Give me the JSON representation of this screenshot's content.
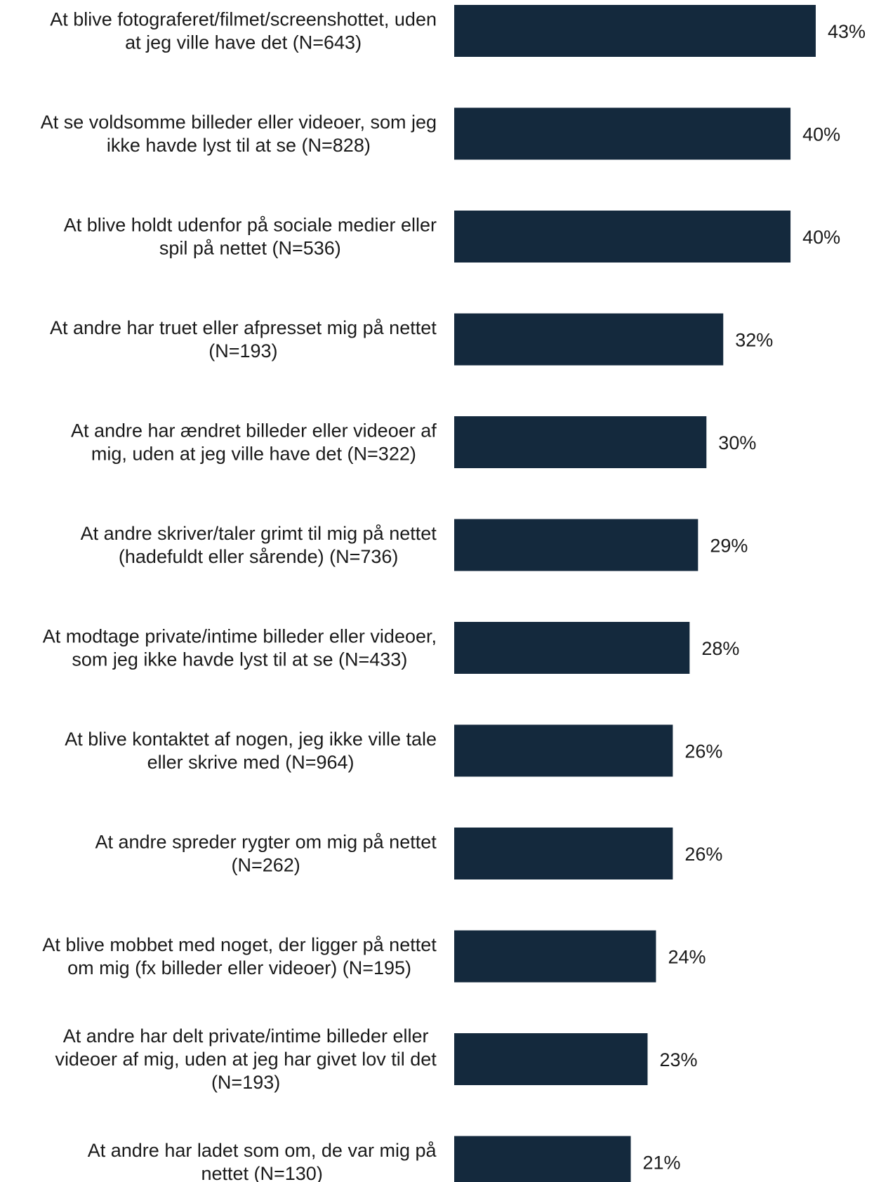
{
  "chart_data": {
    "type": "bar",
    "orientation": "horizontal",
    "bar_color": "#14293d",
    "value_suffix": "%",
    "xlim": [
      0,
      43
    ],
    "grid": false,
    "categories": [
      [
        "At blive fotograferet/filmet/screenshottet, uden",
        "at jeg ville have det (N=643)"
      ],
      [
        "At se voldsomme billeder eller videoer, som jeg",
        "ikke havde lyst til at se (N=828)"
      ],
      [
        "At blive holdt udenfor på sociale medier eller",
        "spil på nettet (N=536)"
      ],
      [
        "At andre har truet eller afpresset mig på nettet",
        "(N=193)"
      ],
      [
        "At andre har ændret billeder eller videoer af",
        "mig, uden at jeg ville have det (N=322)"
      ],
      [
        "At andre skriver/taler grimt til mig på nettet",
        "(hadefuldt eller sårende) (N=736)"
      ],
      [
        "At modtage private/intime billeder eller videoer,",
        "som jeg ikke havde lyst til at se (N=433)"
      ],
      [
        "At blive kontaktet af nogen, jeg ikke ville tale",
        "eller skrive med (N=964)"
      ],
      [
        "At andre spreder rygter om mig på nettet",
        "(N=262)"
      ],
      [
        "At blive mobbet med noget, der ligger på nettet",
        "om mig (fx billeder eller videoer) (N=195)"
      ],
      [
        "At andre har delt private/intime billeder eller",
        "videoer af mig, uden at jeg har givet lov til det",
        "(N=193)"
      ],
      [
        "At andre har ladet som om, de var mig på",
        "nettet (N=130)"
      ]
    ],
    "values": [
      43,
      40,
      40,
      32,
      30,
      29,
      28,
      26,
      26,
      24,
      23,
      21
    ]
  }
}
